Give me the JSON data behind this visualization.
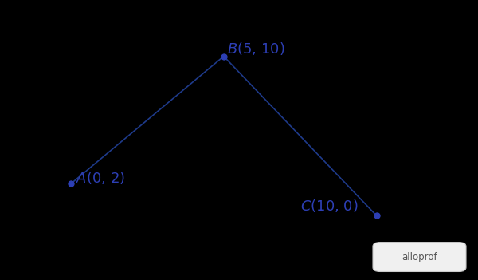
{
  "background_color": "#000000",
  "line_color": "#1e3a8a",
  "point_color": "#2d3fb5",
  "label_color": "#2d3fb5",
  "points": {
    "A": [
      0,
      2
    ],
    "B": [
      5,
      10
    ],
    "C": [
      10,
      0
    ]
  },
  "line_width": 1.2,
  "point_size": 5,
  "font_size": 13,
  "xlim": [
    -2,
    13
  ],
  "ylim": [
    -3.5,
    13
  ],
  "watermark_text": "alloprof",
  "watermark_color": "#555555",
  "watermark_bg": "#f0f0f0",
  "watermark_edge": "#cccccc"
}
